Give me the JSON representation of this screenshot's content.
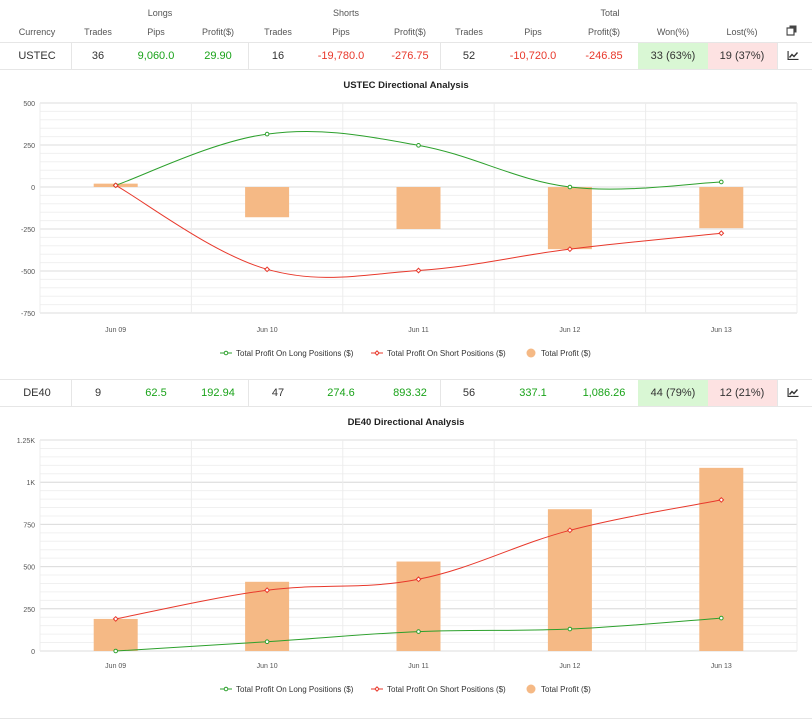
{
  "header": {
    "groups": {
      "longs": "Longs",
      "shorts": "Shorts",
      "total": "Total"
    },
    "columns": [
      "Currency",
      "Trades",
      "Pips",
      "Profit($)",
      "Trades",
      "Pips",
      "Profit($)",
      "Trades",
      "Pips",
      "Profit($)",
      "Won(%)",
      "Lost(%)"
    ],
    "copy_icon": "copy-icon"
  },
  "rows": [
    {
      "currency": "USTEC",
      "long_trades": "36",
      "long_pips": "9,060.0",
      "long_profit": "29.90",
      "short_trades": "16",
      "short_pips": "-19,780.0",
      "short_profit": "-276.75",
      "total_trades": "52",
      "total_pips": "-10,720.0",
      "total_profit": "-246.85",
      "won": "33 (63%)",
      "lost": "19 (37%)",
      "chart_icon": "chart-icon"
    },
    {
      "currency": "DE40",
      "long_trades": "9",
      "long_pips": "62.5",
      "long_profit": "192.94",
      "short_trades": "47",
      "short_pips": "274.6",
      "short_profit": "893.32",
      "total_trades": "56",
      "total_pips": "337.1",
      "total_profit": "1,086.26",
      "won": "44 (79%)",
      "lost": "12 (21%)",
      "chart_icon": "chart-icon"
    }
  ],
  "colors": {
    "long": "#2ca02c",
    "short": "#e8382b",
    "total": "#f5b985",
    "pos_text": "#1aa31a",
    "neg_text": "#e8382b",
    "won_bg": "#d9f7d4",
    "lost_bg": "#fde2e2"
  },
  "chart_data": [
    {
      "type": "line",
      "title": "USTEC Directional Analysis",
      "categories": [
        "Jun 09",
        "Jun 10",
        "Jun 11",
        "Jun 12",
        "Jun 13"
      ],
      "ylim": [
        -750,
        500
      ],
      "yticks": [
        "500",
        "250",
        "0",
        "-250",
        "-500",
        "-750"
      ],
      "ytick_values": [
        500,
        250,
        0,
        -250,
        -500,
        -750
      ],
      "grid": true,
      "legend": "bottom",
      "series": [
        {
          "name": "Total Profit On Long Positions ($)",
          "kind": "line",
          "values": [
            10,
            315,
            248,
            0,
            30
          ]
        },
        {
          "name": "Total Profit On Short Positions ($)",
          "kind": "line",
          "values": [
            10,
            -490,
            -497,
            -370,
            -275
          ]
        },
        {
          "name": "Total Profit ($)",
          "kind": "bar",
          "values": [
            20,
            -180,
            -250,
            -370,
            -245
          ]
        }
      ]
    },
    {
      "type": "line",
      "title": "DE40 Directional Analysis",
      "categories": [
        "Jun 09",
        "Jun 10",
        "Jun 11",
        "Jun 12",
        "Jun 13"
      ],
      "ylim": [
        0,
        1250
      ],
      "yticks": [
        "1.25K",
        "1K",
        "750",
        "500",
        "250",
        "0"
      ],
      "ytick_values": [
        1250,
        1000,
        750,
        500,
        250,
        0
      ],
      "grid": true,
      "legend": "bottom",
      "series": [
        {
          "name": "Total Profit On Long Positions ($)",
          "kind": "line",
          "values": [
            0,
            55,
            115,
            130,
            195
          ]
        },
        {
          "name": "Total Profit On Short Positions ($)",
          "kind": "line",
          "values": [
            190,
            360,
            425,
            715,
            895
          ]
        },
        {
          "name": "Total Profit ($)",
          "kind": "bar",
          "values": [
            190,
            410,
            530,
            840,
            1085
          ]
        }
      ]
    }
  ]
}
